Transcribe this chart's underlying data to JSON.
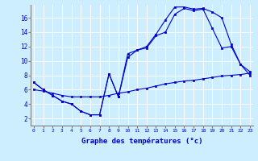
{
  "xlabel": "Graphe des températures (°c)",
  "background_color": "#cceeff",
  "line_color": "#0000cc",
  "x_ticks": [
    0,
    1,
    2,
    3,
    4,
    5,
    6,
    7,
    8,
    9,
    10,
    11,
    12,
    13,
    14,
    15,
    16,
    17,
    18,
    19,
    20,
    21,
    22,
    23
  ],
  "y_ticks": [
    2,
    4,
    6,
    8,
    10,
    12,
    14,
    16
  ],
  "xlim": [
    -0.3,
    23.3
  ],
  "ylim": [
    1.0,
    17.8
  ],
  "line1_x": [
    0,
    1,
    2,
    3,
    4,
    5,
    6,
    7,
    8,
    9,
    10,
    11,
    12,
    13,
    14,
    15,
    16,
    17,
    18,
    19,
    20,
    21,
    22,
    23
  ],
  "line1_y": [
    7.0,
    6.0,
    5.2,
    4.4,
    4.0,
    3.0,
    2.5,
    2.5,
    8.2,
    5.0,
    11.0,
    11.5,
    12.0,
    13.7,
    15.7,
    17.5,
    17.5,
    17.2,
    17.3,
    16.8,
    16.0,
    12.3,
    9.5,
    8.5
  ],
  "line2_x": [
    0,
    1,
    2,
    3,
    4,
    5,
    6,
    7,
    8,
    9,
    10,
    11,
    12,
    13,
    14,
    15,
    16,
    17,
    18,
    19,
    20,
    21,
    22,
    23
  ],
  "line2_y": [
    7.0,
    6.0,
    5.2,
    4.4,
    4.0,
    3.0,
    2.5,
    2.5,
    8.2,
    5.0,
    10.5,
    11.5,
    11.8,
    13.5,
    14.0,
    16.5,
    17.3,
    17.0,
    17.2,
    14.5,
    11.8,
    12.0,
    9.5,
    8.0
  ],
  "line3_x": [
    0,
    1,
    2,
    3,
    4,
    5,
    6,
    7,
    8,
    9,
    10,
    11,
    12,
    13,
    14,
    15,
    16,
    17,
    18,
    19,
    20,
    21,
    22,
    23
  ],
  "line3_y": [
    6.0,
    5.8,
    5.5,
    5.2,
    5.0,
    5.0,
    5.0,
    5.0,
    5.2,
    5.5,
    5.7,
    6.0,
    6.2,
    6.5,
    6.8,
    7.0,
    7.2,
    7.3,
    7.5,
    7.7,
    7.9,
    8.0,
    8.1,
    8.3
  ]
}
